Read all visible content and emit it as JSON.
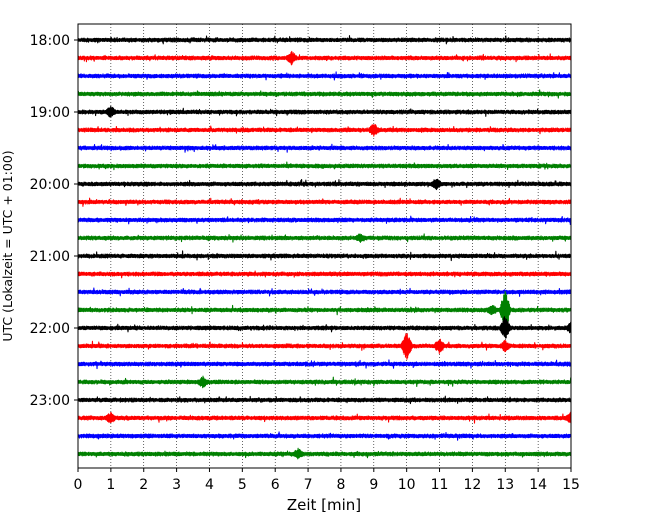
{
  "chart_data": {
    "type": "line",
    "title": "",
    "xlabel": "Zeit  [min]",
    "ylabel": "UTC (Lokalzeit = UTC + 01:00)",
    "xlim": [
      0,
      15
    ],
    "x_ticks": [
      "0",
      "1",
      "2",
      "3",
      "4",
      "5",
      "6",
      "7",
      "8",
      "9",
      "10",
      "11",
      "12",
      "13",
      "14",
      "15"
    ],
    "y_ticks": [
      "18:00",
      "19:00",
      "20:00",
      "21:00",
      "22:00",
      "23:00"
    ],
    "grid": "vertical dotted at each minute",
    "trace_interval_minutes": 15,
    "colors": {
      "black": "#000000",
      "red": "#ff0000",
      "blue": "#0000ff",
      "green": "#008000"
    },
    "series": [
      {
        "start": "18:00",
        "color": "#000000",
        "events": []
      },
      {
        "start": "18:15",
        "color": "#ff0000",
        "events": [
          {
            "t": 6.5,
            "amp": 6
          }
        ]
      },
      {
        "start": "18:30",
        "color": "#0000ff",
        "events": []
      },
      {
        "start": "18:45",
        "color": "#008000",
        "events": []
      },
      {
        "start": "19:00",
        "color": "#000000",
        "events": [
          {
            "t": 1.0,
            "amp": 5
          }
        ]
      },
      {
        "start": "19:15",
        "color": "#ff0000",
        "events": [
          {
            "t": 9.0,
            "amp": 6
          }
        ]
      },
      {
        "start": "19:30",
        "color": "#0000ff",
        "events": []
      },
      {
        "start": "19:45",
        "color": "#008000",
        "events": []
      },
      {
        "start": "20:00",
        "color": "#000000",
        "events": [
          {
            "t": 10.9,
            "amp": 5
          }
        ]
      },
      {
        "start": "20:15",
        "color": "#ff0000",
        "events": []
      },
      {
        "start": "20:30",
        "color": "#0000ff",
        "events": []
      },
      {
        "start": "20:45",
        "color": "#008000",
        "events": [
          {
            "t": 8.6,
            "amp": 4
          }
        ]
      },
      {
        "start": "21:00",
        "color": "#000000",
        "events": []
      },
      {
        "start": "21:15",
        "color": "#ff0000",
        "events": []
      },
      {
        "start": "21:30",
        "color": "#0000ff",
        "events": []
      },
      {
        "start": "21:45",
        "color": "#008000",
        "events": [
          {
            "t": 13.0,
            "amp": 20
          },
          {
            "t": 12.6,
            "amp": 5
          }
        ]
      },
      {
        "start": "22:00",
        "color": "#000000",
        "events": [
          {
            "t": 13.0,
            "amp": 12
          },
          {
            "t": 15.0,
            "amp": 5
          }
        ]
      },
      {
        "start": "22:15",
        "color": "#ff0000",
        "events": [
          {
            "t": 10.0,
            "amp": 14
          },
          {
            "t": 11.0,
            "amp": 7
          },
          {
            "t": 13.0,
            "amp": 5
          }
        ]
      },
      {
        "start": "22:30",
        "color": "#0000ff",
        "events": []
      },
      {
        "start": "22:45",
        "color": "#008000",
        "events": [
          {
            "t": 3.8,
            "amp": 5
          }
        ]
      },
      {
        "start": "23:00",
        "color": "#000000",
        "events": []
      },
      {
        "start": "23:15",
        "color": "#ff0000",
        "events": [
          {
            "t": 1.0,
            "amp": 5
          },
          {
            "t": 15.0,
            "amp": 5
          }
        ]
      },
      {
        "start": "23:30",
        "color": "#0000ff",
        "events": []
      },
      {
        "start": "23:45",
        "color": "#008000",
        "events": [
          {
            "t": 6.7,
            "amp": 5
          }
        ]
      }
    ]
  }
}
